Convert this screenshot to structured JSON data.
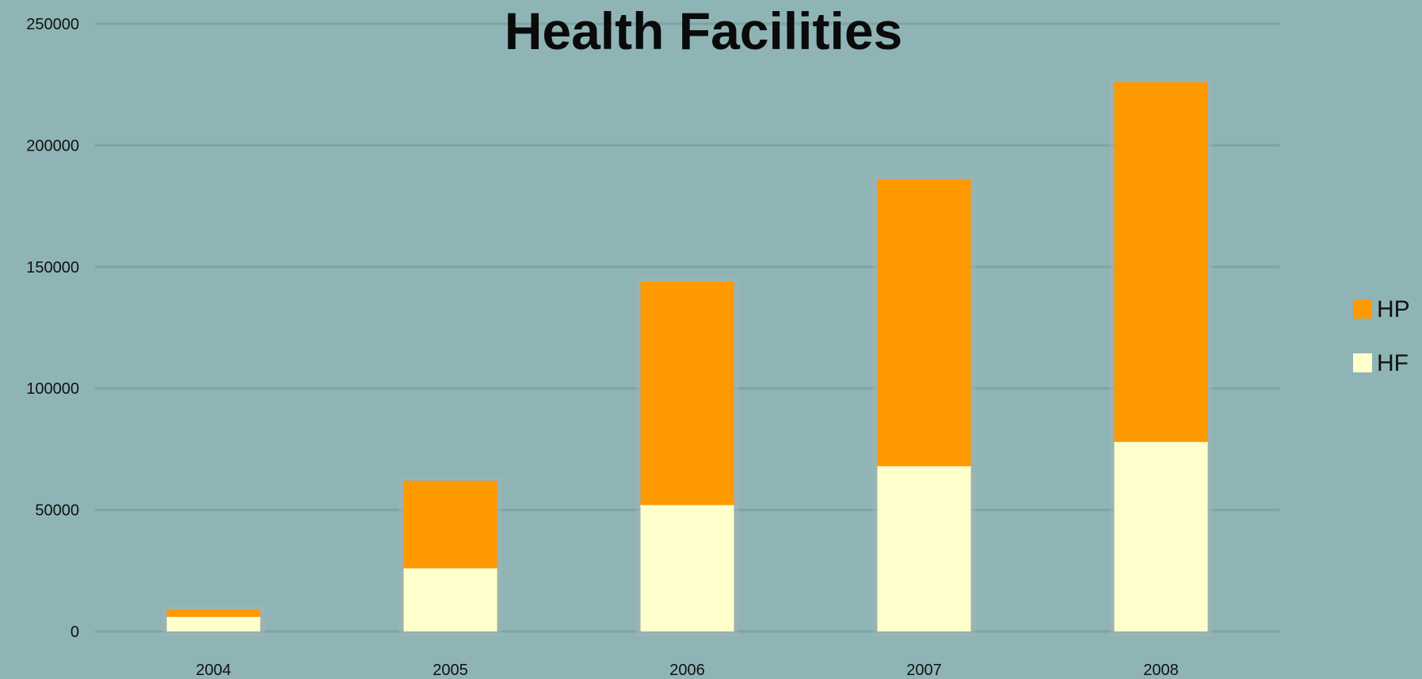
{
  "chart_data": {
    "type": "bar",
    "stacked": true,
    "title": "Health Facilities",
    "xlabel": "",
    "ylabel": "",
    "categories": [
      "2004",
      "2005",
      "2006",
      "2007",
      "2008"
    ],
    "series": [
      {
        "name": "HF",
        "color": "#ffffcc",
        "values": [
          6000,
          26000,
          52000,
          68000,
          78000
        ]
      },
      {
        "name": "HP",
        "color": "#ff9900",
        "values": [
          3000,
          36000,
          92000,
          118000,
          148000
        ]
      }
    ],
    "ylim": [
      0,
      250000
    ],
    "yticks": [
      0,
      50000,
      100000,
      150000,
      200000,
      250000
    ],
    "ytick_labels": [
      "0",
      "50000",
      "100000",
      "150000",
      "200000",
      "250000"
    ],
    "grid": true,
    "legend_position": "right",
    "legend_order": [
      "HP",
      "HF"
    ],
    "colors": {
      "background": "#8fb4b5",
      "gridline": "#7ea3a4",
      "bar_shadow": "#a3b5b0"
    }
  }
}
